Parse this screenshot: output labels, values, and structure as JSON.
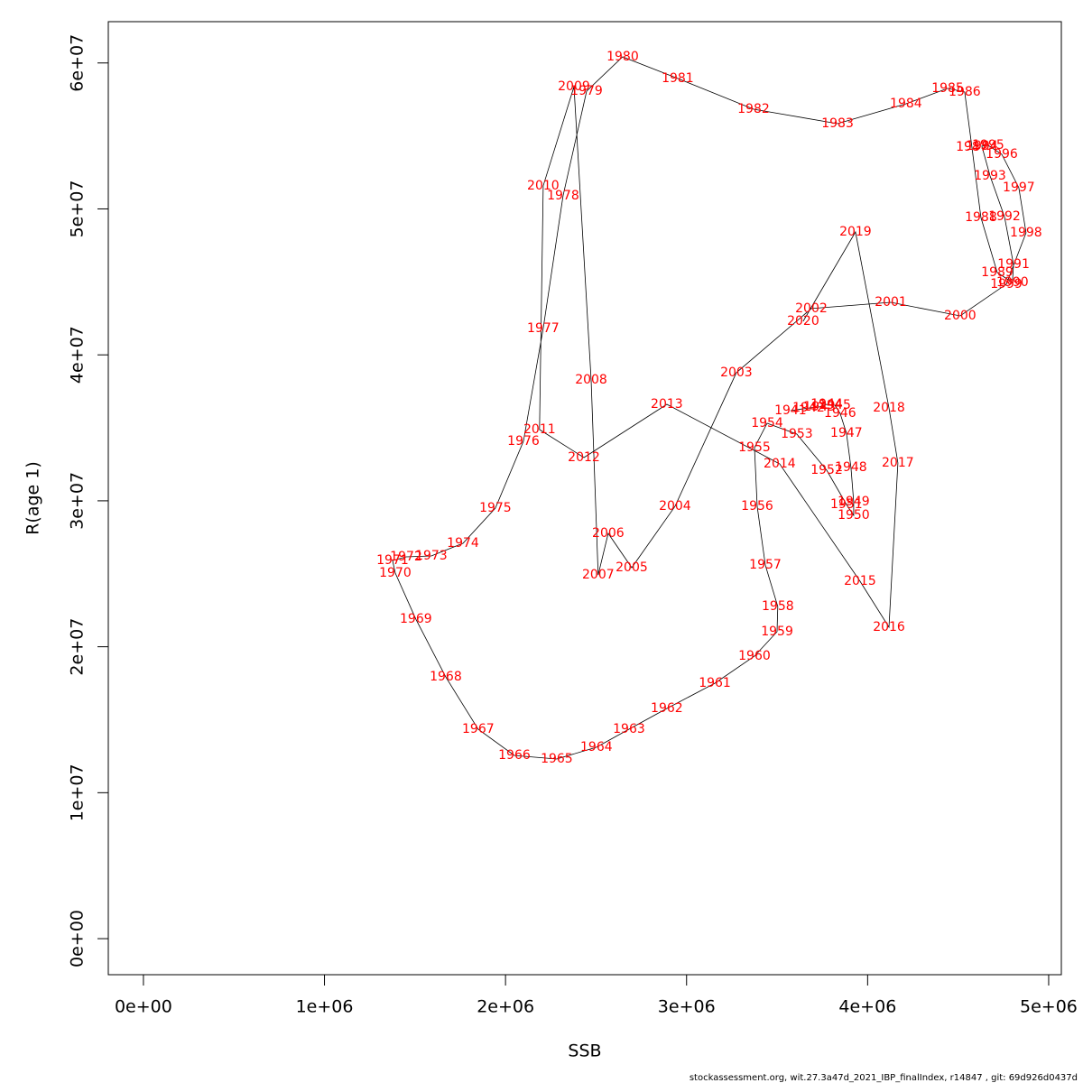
{
  "chart_data": {
    "type": "scatter",
    "xlabel": "SSB",
    "ylabel": "R(age 1)",
    "footer": "stockassessment.org, wit.27.3a47d_2021_IBP_finalIndex, r14847 , git: 69d926d0437d",
    "line_color": "#000000",
    "label_color": "#ff0000",
    "xlim": [
      -194000,
      5070000
    ],
    "ylim": [
      -2470000,
      62830000
    ],
    "xticks": [
      {
        "value": 0,
        "label": "0e+00"
      },
      {
        "value": 1000000,
        "label": "1e+06"
      },
      {
        "value": 2000000,
        "label": "2e+06"
      },
      {
        "value": 3000000,
        "label": "3e+06"
      },
      {
        "value": 4000000,
        "label": "4e+06"
      },
      {
        "value": 5000000,
        "label": "5e+06"
      }
    ],
    "yticks": [
      {
        "value": 0,
        "label": "0e+00"
      },
      {
        "value": 10000000,
        "label": "1e+07"
      },
      {
        "value": 20000000,
        "label": "2e+07"
      },
      {
        "value": 30000000,
        "label": "3e+07"
      },
      {
        "value": 40000000,
        "label": "4e+07"
      },
      {
        "value": 50000000,
        "label": "5e+07"
      },
      {
        "value": 60000000,
        "label": "6e+07"
      }
    ],
    "point_labels": [
      "1941",
      "1942",
      "1943",
      "1944",
      "1945",
      "1946",
      "1947",
      "1948",
      "1949",
      "1950",
      "1951",
      "1952",
      "1953",
      "1954",
      "1955",
      "1956",
      "1957",
      "1958",
      "1959",
      "1960",
      "1961",
      "1962",
      "1963",
      "1964",
      "1965",
      "1966",
      "1967",
      "1968",
      "1969",
      "1970",
      "1971",
      "1972",
      "1973",
      "1974",
      "1975",
      "1976",
      "1977",
      "1978",
      "1979",
      "1980",
      "1981",
      "1982",
      "1983",
      "1984",
      "1985",
      "1986",
      "1987",
      "1988",
      "1989",
      "1990",
      "1991",
      "1992",
      "1993",
      "1994",
      "1995",
      "1996",
      "1997",
      "1998",
      "1999",
      "2000",
      "2001",
      "2002",
      "2003",
      "2004",
      "2005",
      "2006",
      "2007",
      "2008",
      "2009",
      "2010",
      "2011",
      "2012",
      "2013",
      "2014",
      "2015",
      "2016",
      "2017",
      "2018",
      "2019",
      "2020"
    ],
    "x": [
      3574000.0,
      3674000.0,
      3734000.0,
      3774000.0,
      3819000.0,
      3848000.0,
      3883000.0,
      3908000.0,
      3923000.0,
      3923000.0,
      3883000.0,
      3774000.0,
      3609000.0,
      3445000.0,
      3375000.0,
      3390000.0,
      3435000.0,
      3504000.0,
      3500000.0,
      3375000.0,
      3156000.0,
      2891000.0,
      2682000.0,
      2502000.0,
      2283000.0,
      2049000.0,
      1849000.0,
      1670000.0,
      1505000.0,
      1391000.0,
      1376000.0,
      1451000.0,
      1590000.0,
      1765000.0,
      1944000.0,
      2099000.0,
      2208000.0,
      2318000.0,
      2448000.0,
      2647000.0,
      2951000.0,
      3370000.0,
      3834000.0,
      4212000.0,
      4442000.0,
      4536000.0,
      4576000.0,
      4626000.0,
      4716000.0,
      4800000.0,
      4806000.0,
      4756000.0,
      4676000.0,
      4631000.0,
      4666000.0,
      4741000.0,
      4835000.0,
      4875000.0,
      4766000.0,
      4511000.0,
      4128000.0,
      3689000.0,
      3275000.0,
      2936000.0,
      2697000.0,
      2567000.0,
      2512000.0,
      2473000.0,
      2378000.0,
      2208000.0,
      2188000.0,
      2433000.0,
      2891000.0,
      3514000.0,
      3958000.0,
      4118000.0,
      4167000.0,
      4118000.0,
      3933000.0,
      3644000.0
    ],
    "values": [
      36180000.0,
      36360000.0,
      36430000.0,
      36610000.0,
      36550000.0,
      35990000.0,
      34630000.0,
      32280000.0,
      29930000.0,
      29000000.0,
      29750000.0,
      32100000.0,
      34570000.0,
      35310000.0,
      33640000.0,
      29620000.0,
      25600000.0,
      22760000.0,
      21030000.0,
      19360000.0,
      17500000.0,
      15770000.0,
      14350000.0,
      13110000.0,
      12310000.0,
      12550000.0,
      14350000.0,
      17930000.0,
      21890000.0,
      25050000.0,
      25910000.0,
      26160000.0,
      26220000.0,
      27090000.0,
      29500000.0,
      34080000.0,
      41810000.0,
      50900000.0,
      58070000.0,
      60420000.0,
      58940000.0,
      56830000.0,
      55840000.0,
      57200000.0,
      58260000.0,
      58010000.0,
      54240000.0,
      49410000.0,
      45640000.0,
      44960000.0,
      46200000.0,
      49470000.0,
      52260000.0,
      54300000.0,
      54360000.0,
      53740000.0,
      51450000.0,
      48360000.0,
      44840000.0,
      42670000.0,
      43600000.0,
      43170000.0,
      38780000.0,
      29620000.0,
      25420000.0,
      27770000.0,
      24920000.0,
      38280000.0,
      58380000.0,
      51580000.0,
      34880000.0,
      32960000.0,
      36610000.0,
      32530000.0,
      24490000.0,
      21340000.0,
      32590000.0,
      36360000.0,
      48420000.0,
      42300000.0
    ]
  }
}
